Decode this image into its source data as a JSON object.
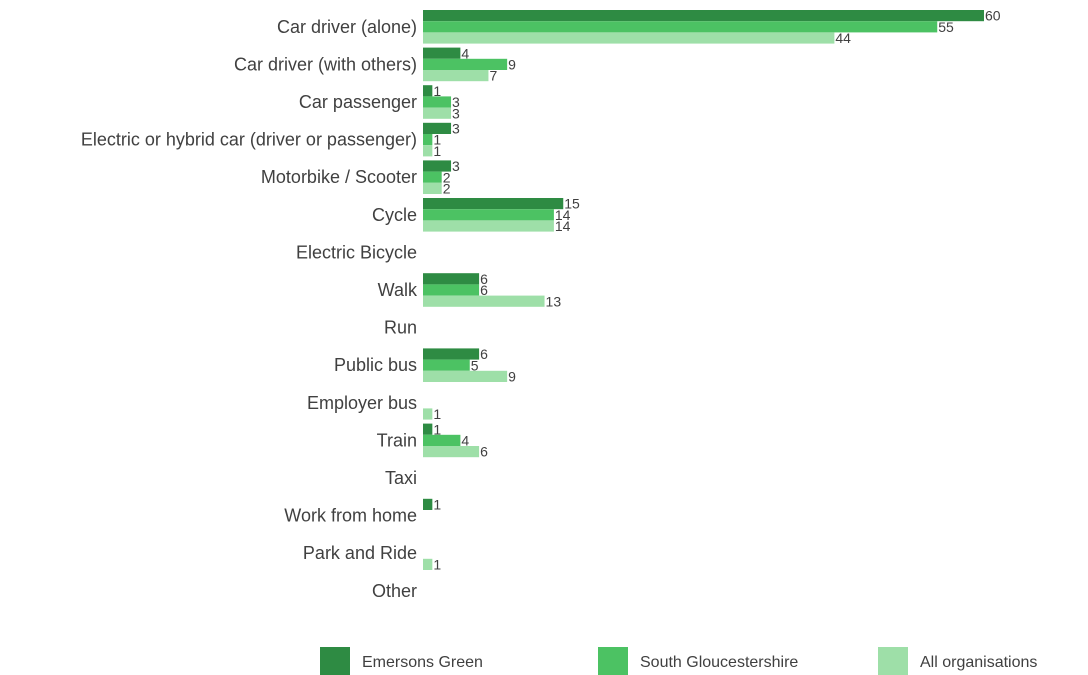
{
  "chart_data": {
    "type": "bar",
    "orientation": "horizontal",
    "categories": [
      "Car driver (alone)",
      "Car driver (with others)",
      "Car passenger",
      "Electric or hybrid car (driver or passenger)",
      "Motorbike / Scooter",
      "Cycle",
      "Electric Bicycle",
      "Walk",
      "Run",
      "Public bus",
      "Employer bus",
      "Train",
      "Taxi",
      "Work from home",
      "Park and Ride",
      "Other"
    ],
    "series": [
      {
        "name": "Emersons Green",
        "color": "#2e8b43",
        "values": [
          60,
          4,
          1,
          3,
          3,
          15,
          null,
          6,
          null,
          6,
          null,
          1,
          null,
          1,
          null,
          null
        ]
      },
      {
        "name": "South Gloucestershire",
        "color": "#4cc263",
        "values": [
          55,
          9,
          3,
          1,
          2,
          14,
          null,
          6,
          null,
          5,
          null,
          4,
          null,
          null,
          null,
          null
        ]
      },
      {
        "name": "All organisations",
        "color": "#9edfa8",
        "values": [
          44,
          7,
          3,
          1,
          2,
          14,
          null,
          13,
          null,
          9,
          1,
          6,
          null,
          null,
          1,
          null
        ]
      }
    ],
    "data_labels": true,
    "axis_visible": false,
    "grid": false,
    "legend_position": "bottom"
  }
}
